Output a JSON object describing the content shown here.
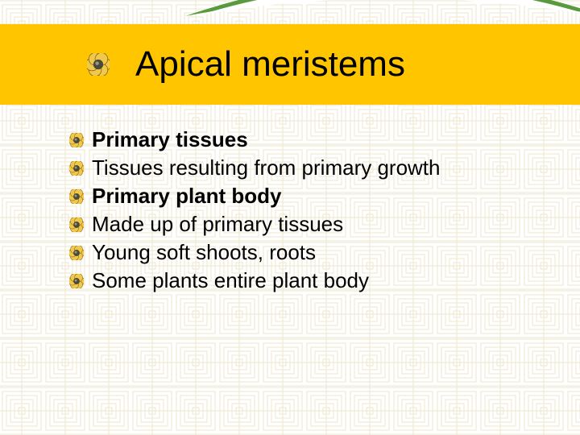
{
  "title": "Apical meristems",
  "title_fontsize": 44,
  "title_band_color": "#ffc600",
  "swoosh_colors": {
    "outer": "#5a9a3f",
    "inner": "#ffffff"
  },
  "bullet_colors": {
    "petal": "#f2c84b",
    "petal_stroke": "#8a6a1a",
    "center": "#4a4a3a",
    "center_highlight": "#9a9a7a"
  },
  "pattern": {
    "stroke": "#b9a24b",
    "rows": 9,
    "cols": 14,
    "opacity": 0.22
  },
  "body_fontsize": 26,
  "items": [
    {
      "text": "Primary tissues",
      "bold": true
    },
    {
      "text": "Tissues resulting from primary growth",
      "bold": false
    },
    {
      "text": "Primary plant body",
      "bold": true
    },
    {
      "text": "Made up of primary tissues",
      "bold": false
    },
    {
      "text": "Young soft shoots, roots",
      "bold": false
    },
    {
      "text": "Some plants entire plant body",
      "bold": false
    }
  ]
}
